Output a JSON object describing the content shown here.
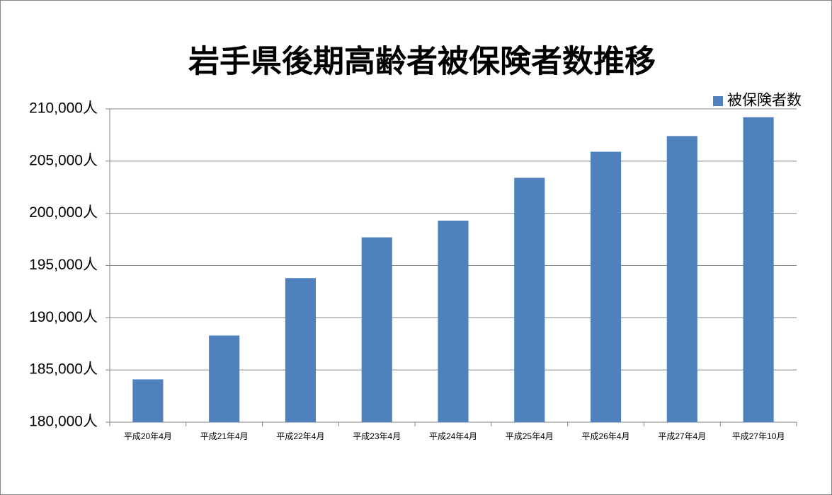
{
  "chart_data": {
    "type": "bar",
    "title": "岩手県後期高齢者被保険者数推移",
    "categories": [
      "平成20年4月",
      "平成21年4月",
      "平成22年4月",
      "平成23年4月",
      "平成24年4月",
      "平成25年4月",
      "平成26年4月",
      "平成27年4月",
      "平成27年10月"
    ],
    "series": [
      {
        "name": "被保険者数",
        "color": "#4f81bd",
        "values": [
          184100,
          188300,
          193800,
          197700,
          199300,
          203400,
          205900,
          207400,
          209200
        ]
      }
    ],
    "ylim": [
      180000,
      210000
    ],
    "yticks": [
      {
        "value": 180000,
        "label": "180,000人"
      },
      {
        "value": 185000,
        "label": "185,000人"
      },
      {
        "value": 190000,
        "label": "190,000人"
      },
      {
        "value": 195000,
        "label": "195,000人"
      },
      {
        "value": 200000,
        "label": "200,000人"
      },
      {
        "value": 205000,
        "label": "205,000人"
      },
      {
        "value": 210000,
        "label": "210,000人"
      }
    ],
    "grid": true,
    "legend": "top-right"
  }
}
